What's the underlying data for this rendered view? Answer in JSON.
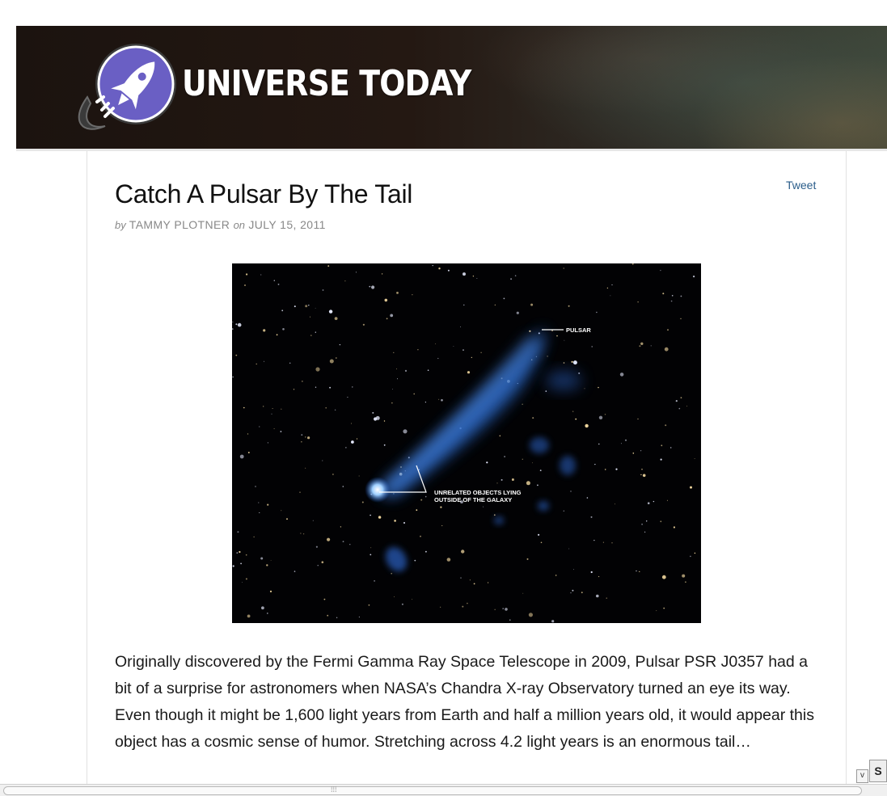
{
  "site": {
    "name": "UNIVERSE TODAY",
    "logo_icon": "rocket-icon"
  },
  "article": {
    "title": "Catch A Pulsar By The Tail",
    "by_label": "by",
    "author": "TAMMY PLOTNER",
    "on_label": "on",
    "date": "JULY 15, 2011",
    "tweet_label": "Tweet",
    "image": {
      "annotation_pulsar": "PULSAR",
      "annotation_unrelated_line1": "UNRELATED OBJECTS LYING",
      "annotation_unrelated_line2": "OUTSIDE OF THE GALAXY"
    },
    "excerpt": "Originally discovered by the Fermi Gamma Ray Space Telescope in 2009, Pulsar PSR J0357 had a bit of a surprise for astronomers when NASA’s Chandra X-ray Observatory turned an eye its way. Even though it might be 1,600 light years from Earth and half a million years old, it would appear this object has a cosmic sense of humor. Stretching across 4.2 light years is an enormous tail…"
  },
  "chrome": {
    "scroll_down_glyph": "v",
    "corner_glyph": "S",
    "h_grip": "⁞⁞⁞"
  },
  "colors": {
    "link": "#2a5d8a",
    "logo_circle": "#6a5fc4",
    "pulsar_blue": "#3a78d6"
  }
}
